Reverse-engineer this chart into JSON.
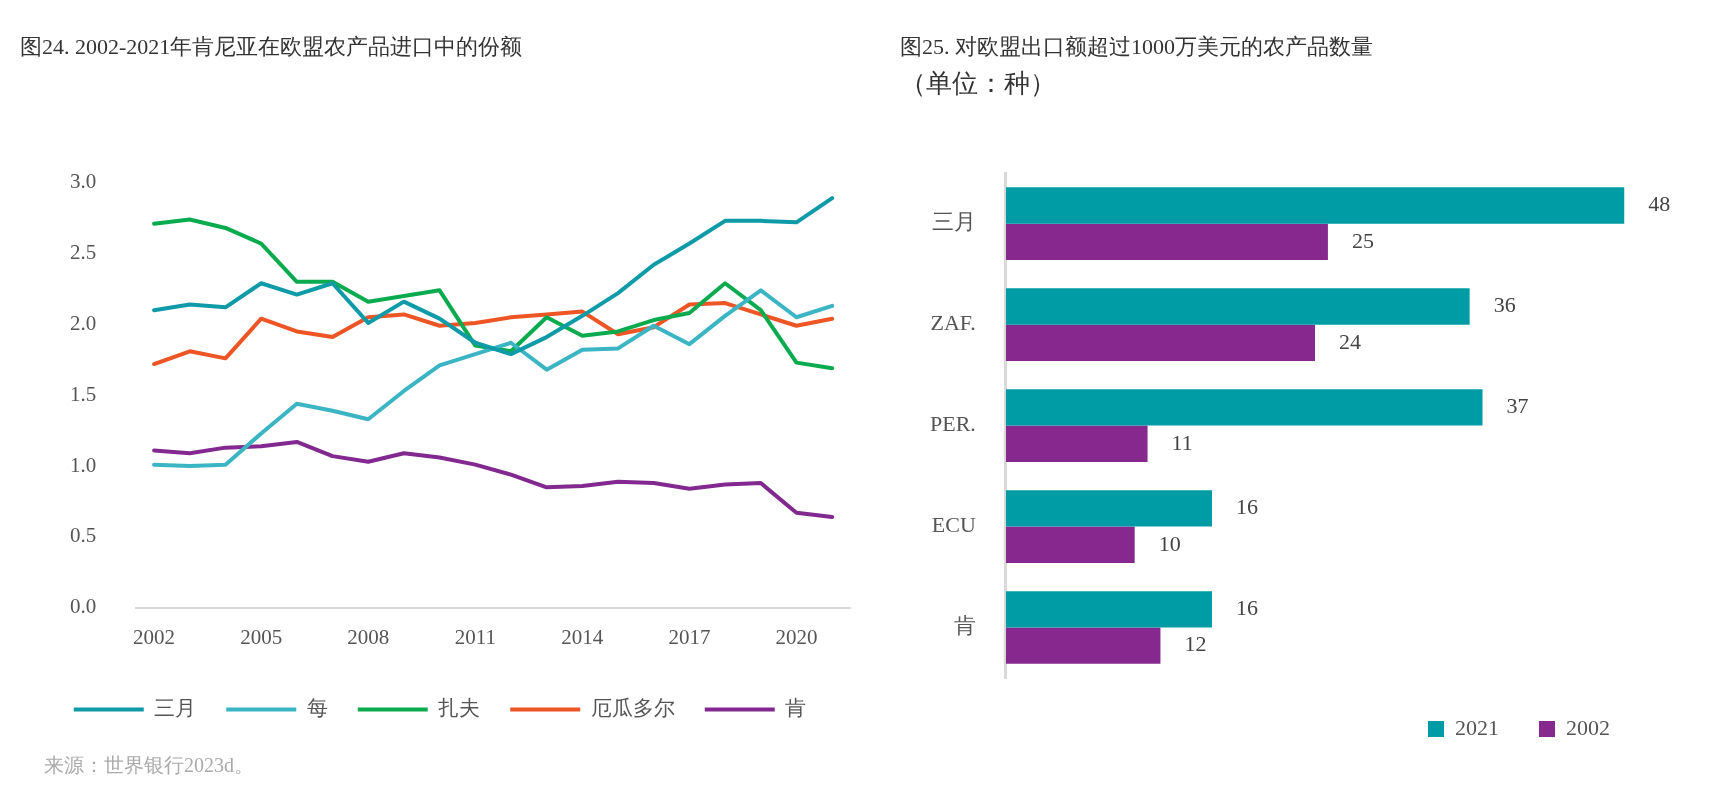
{
  "chart_data": [
    {
      "type": "line",
      "title": "图24. 2002-2021年肯尼亚在欧盟农产品进口中的份额",
      "x": [
        2002,
        2003,
        2004,
        2005,
        2006,
        2007,
        2008,
        2009,
        2010,
        2011,
        2012,
        2013,
        2014,
        2015,
        2016,
        2017,
        2018,
        2019,
        2020,
        2021
      ],
      "xlim": [
        2001.5,
        2021.5
      ],
      "xticks": [
        2002,
        2005,
        2008,
        2011,
        2014,
        2017,
        2020
      ],
      "ylim": [
        0,
        3
      ],
      "yticks": [
        {
          "value": 0,
          "label": "0.0"
        },
        {
          "value": 0.5,
          "label": "0.5"
        },
        {
          "value": 1,
          "label": "1.0"
        },
        {
          "value": 1.5,
          "label": "1.5"
        },
        {
          "value": 2,
          "label": "2.0"
        },
        {
          "value": 2.5,
          "label": "2.5"
        },
        {
          "value": 3,
          "label": "3.0"
        }
      ],
      "grid": false,
      "legend": "bottom",
      "marker": "none",
      "line_style": "solid",
      "annotations": [
        "来源：世界银行2023d。"
      ],
      "series": [
        {
          "name": "三月",
          "color": "#0e9aa7",
          "values": [
            2.1,
            2.14,
            2.12,
            2.29,
            2.21,
            2.29,
            2.01,
            2.16,
            2.04,
            1.87,
            1.79,
            1.91,
            2.06,
            2.22,
            2.42,
            2.57,
            2.73,
            2.73,
            2.72,
            2.89
          ]
        },
        {
          "name": "每",
          "color": "#3bb5c4",
          "values": [
            1.01,
            1.0,
            1.01,
            1.23,
            1.44,
            1.39,
            1.33,
            1.53,
            1.71,
            1.79,
            1.87,
            1.68,
            1.82,
            1.83,
            1.99,
            1.86,
            2.06,
            2.24,
            2.05,
            2.13
          ]
        },
        {
          "name": "扎夫",
          "color": "#0aab4f",
          "values": [
            2.71,
            2.74,
            2.68,
            2.57,
            2.3,
            2.3,
            2.16,
            2.2,
            2.24,
            1.85,
            1.81,
            2.05,
            1.92,
            1.95,
            2.03,
            2.08,
            2.29,
            2.1,
            1.73,
            1.69
          ]
        },
        {
          "name": "厄瓜多尔",
          "color": "#ee5525",
          "values": [
            1.72,
            1.81,
            1.76,
            2.04,
            1.95,
            1.91,
            2.05,
            2.07,
            1.99,
            2.01,
            2.05,
            2.07,
            2.09,
            1.93,
            1.98,
            2.14,
            2.15,
            2.07,
            1.99,
            2.04
          ]
        },
        {
          "name": "肯",
          "color": "#82298f",
          "values": [
            1.11,
            1.09,
            1.13,
            1.14,
            1.17,
            1.07,
            1.03,
            1.09,
            1.06,
            1.01,
            0.94,
            0.85,
            0.86,
            0.89,
            0.88,
            0.84,
            0.87,
            0.88,
            0.67,
            0.64
          ]
        }
      ]
    },
    {
      "type": "bar",
      "orientation": "horizontal",
      "title": "图25. 对欧盟出口额超过1000万美元的农产品数量",
      "subtitle": "（单位：种）",
      "categories": [
        "三月",
        "ZAF.",
        "PER.",
        "ECU",
        "肯"
      ],
      "data_labels": true,
      "grid": false,
      "legend": "bottom right",
      "series": [
        {
          "name": "2021",
          "color": "#009ca6",
          "values": [
            48,
            36,
            37,
            16,
            16
          ]
        },
        {
          "name": "2002",
          "color": "#86288e",
          "values": [
            25,
            24,
            11,
            10,
            12
          ]
        }
      ]
    }
  ]
}
